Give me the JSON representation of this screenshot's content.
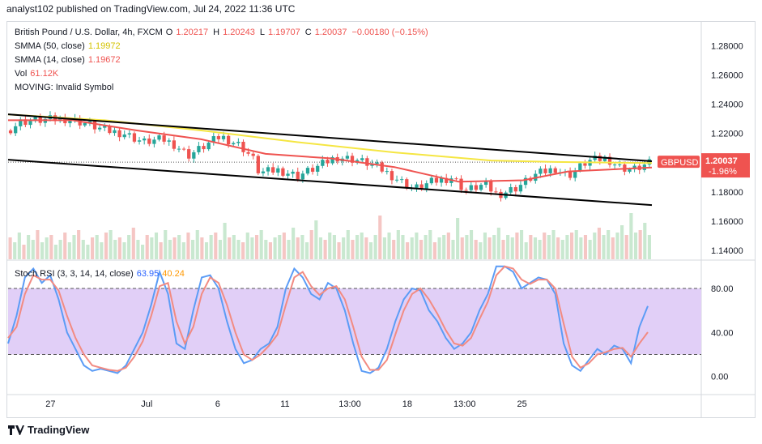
{
  "header": {
    "published": "analyst102 published on TradingView.com, Jul 24, 2022 11:36 UTC"
  },
  "legend": {
    "symbol": "British Pound / U.S. Dollar, 4h, FXCM",
    "o_label": "O",
    "o": "1.20217",
    "h_label": "H",
    "h": "1.20243",
    "l_label": "L",
    "l": "1.19707",
    "c_label": "C",
    "c": "1.20037",
    "change": "−0.00180 (−0.15%)",
    "smma50_label": "SMMA (50, close)",
    "smma50": "1.19972",
    "smma14_label": "SMMA (14, close)",
    "smma14": "1.19672",
    "vol_label": "Vol",
    "vol": "61.12K",
    "moving": "MOVING: Invalid Symbol",
    "stoch_label": "Stoch RSI (3, 3, 14, 14, close)",
    "stoch_k": "63.95",
    "stoch_d": "40.24"
  },
  "price_badge": {
    "symbol": "GBPUSD",
    "price": "1.20037",
    "pct": "-1.96%"
  },
  "footer": {
    "brand": "TradingView"
  },
  "colors": {
    "bull": "#26a69a",
    "bear": "#ef5350",
    "smma50": "#f5e642",
    "smma14": "#ef5350",
    "stoch_k": "#5b9cf6",
    "stoch_d": "#f28b82",
    "band": "#e1cff7",
    "badge": "#ef5350",
    "trendline": "#000000"
  },
  "chart_data": [
    {
      "type": "candlestick",
      "title": "British Pound / U.S. Dollar, 4h, FXCM",
      "y_ticks": [
        "1.28000",
        "1.26000",
        "1.24000",
        "1.22000",
        "1.20000",
        "1.18000",
        "1.16000",
        "1.14000"
      ],
      "ylim": [
        1.134,
        1.289
      ],
      "x_ticks": [
        "27",
        "Jul",
        "6",
        "11",
        "13:00",
        "18",
        "13:00",
        "25"
      ],
      "x_tick_positions": [
        0.085,
        0.278,
        0.42,
        0.555,
        0.685,
        0.8,
        0.915,
        1.03
      ],
      "close_path": [
        [
          0.0,
          1.222
        ],
        [
          0.02,
          1.228
        ],
        [
          0.05,
          1.229
        ],
        [
          0.09,
          1.23
        ],
        [
          0.12,
          1.227
        ],
        [
          0.15,
          1.222
        ],
        [
          0.18,
          1.22
        ],
        [
          0.21,
          1.214
        ],
        [
          0.24,
          1.216
        ],
        [
          0.26,
          1.212
        ],
        [
          0.28,
          1.205
        ],
        [
          0.3,
          1.21
        ],
        [
          0.33,
          1.218
        ],
        [
          0.36,
          1.212
        ],
        [
          0.38,
          1.203
        ],
        [
          0.39,
          1.193
        ],
        [
          0.42,
          1.195
        ],
        [
          0.45,
          1.191
        ],
        [
          0.48,
          1.197
        ],
        [
          0.51,
          1.204
        ],
        [
          0.54,
          1.202
        ],
        [
          0.57,
          1.198
        ],
        [
          0.6,
          1.19
        ],
        [
          0.63,
          1.182
        ],
        [
          0.66,
          1.187
        ],
        [
          0.69,
          1.19
        ],
        [
          0.71,
          1.181
        ],
        [
          0.74,
          1.185
        ],
        [
          0.76,
          1.178
        ],
        [
          0.79,
          1.183
        ],
        [
          0.82,
          1.192
        ],
        [
          0.85,
          1.196
        ],
        [
          0.87,
          1.191
        ],
        [
          0.9,
          1.201
        ],
        [
          0.93,
          1.203
        ],
        [
          0.95,
          1.197
        ],
        [
          0.97,
          1.195
        ],
        [
          1.0,
          1.2
        ]
      ],
      "smma50_path": [
        [
          0.0,
          1.233
        ],
        [
          0.15,
          1.229
        ],
        [
          0.3,
          1.222
        ],
        [
          0.45,
          1.214
        ],
        [
          0.6,
          1.207
        ],
        [
          0.75,
          1.2015
        ],
        [
          0.85,
          1.2005
        ],
        [
          1.0,
          1.19972
        ]
      ],
      "smma14_path": [
        [
          0.0,
          1.229
        ],
        [
          0.1,
          1.229
        ],
        [
          0.2,
          1.222
        ],
        [
          0.3,
          1.216
        ],
        [
          0.4,
          1.206
        ],
        [
          0.5,
          1.203
        ],
        [
          0.6,
          1.197
        ],
        [
          0.7,
          1.187
        ],
        [
          0.8,
          1.188
        ],
        [
          0.87,
          1.194
        ],
        [
          1.0,
          1.19672
        ]
      ],
      "trendlines": [
        {
          "points": [
            [
              0.0,
              1.233
            ],
            [
              1.0,
              1.201
            ]
          ]
        },
        {
          "points": [
            [
              0.0,
              1.202
            ],
            [
              1.0,
              1.171
            ]
          ]
        }
      ],
      "volume": [
        0.45,
        0.35,
        0.55,
        0.3,
        0.5,
        0.4,
        0.6,
        0.35,
        0.45,
        0.5,
        0.3,
        0.4,
        0.55,
        0.35,
        0.5,
        0.6,
        0.4,
        0.3,
        0.45,
        0.5,
        0.35,
        0.55,
        0.6,
        0.4,
        0.45,
        0.35,
        0.5,
        0.65,
        0.4,
        0.3,
        0.5,
        0.45,
        0.55,
        0.35,
        0.6,
        0.4,
        0.45,
        0.5,
        0.35,
        0.55,
        0.4,
        0.6,
        0.45,
        0.35,
        0.5,
        0.55,
        0.4,
        0.75,
        0.45,
        0.5,
        0.4,
        0.35,
        0.55,
        0.45,
        0.5,
        0.6,
        0.4,
        0.35,
        0.45,
        0.5,
        0.55,
        0.4,
        0.65,
        0.45,
        0.5,
        0.35,
        0.6,
        0.8,
        0.45,
        0.4,
        0.55,
        0.5,
        0.35,
        0.45,
        0.6,
        0.4,
        0.5,
        0.55,
        0.45,
        0.35,
        0.5,
        0.9,
        0.45,
        0.55,
        0.4,
        0.6,
        0.5,
        0.35,
        0.45,
        0.55,
        0.4,
        0.5,
        0.6,
        0.35,
        0.45,
        0.5,
        0.55,
        0.4,
        0.85,
        0.45,
        0.5,
        0.6,
        0.4,
        0.35,
        0.55,
        0.45,
        0.5,
        0.65,
        0.4,
        0.5,
        0.45,
        0.55,
        0.6,
        0.35,
        0.5,
        0.45,
        0.4,
        0.55,
        0.5,
        0.6,
        0.45,
        0.4,
        0.5,
        0.55,
        0.6,
        0.45,
        0.5,
        0.4,
        0.55,
        0.65,
        0.5,
        0.6,
        0.45,
        0.55,
        0.7,
        0.5,
        0.95,
        0.55,
        0.6,
        0.75,
        0.5
      ]
    },
    {
      "type": "line",
      "title": "Stoch RSI (3, 3, 14, 14, close)",
      "y_ticks": [
        "80.00",
        "40.00",
        "0.00"
      ],
      "ylim": [
        -15,
        105
      ],
      "band": [
        20,
        80
      ],
      "series": [
        {
          "name": "%K",
          "values": [
            30,
            55,
            90,
            98,
            85,
            92,
            70,
            40,
            25,
            10,
            5,
            7,
            5,
            3,
            10,
            25,
            40,
            65,
            95,
            75,
            30,
            25,
            60,
            90,
            92,
            80,
            50,
            25,
            12,
            15,
            25,
            30,
            45,
            80,
            98,
            90,
            75,
            70,
            85,
            80,
            60,
            30,
            5,
            3,
            8,
            25,
            50,
            70,
            80,
            78,
            60,
            50,
            35,
            25,
            30,
            40,
            60,
            75,
            100,
            100,
            95,
            80,
            85,
            90,
            88,
            75,
            30,
            10,
            5,
            15,
            25,
            20,
            28,
            25,
            12,
            45,
            64
          ]
        },
        {
          "name": "%D",
          "values": [
            35,
            45,
            75,
            92,
            88,
            88,
            78,
            55,
            35,
            20,
            10,
            8,
            6,
            5,
            8,
            18,
            32,
            55,
            82,
            85,
            50,
            30,
            45,
            75,
            90,
            85,
            65,
            40,
            20,
            15,
            20,
            28,
            38,
            65,
            90,
            95,
            82,
            74,
            80,
            82,
            70,
            45,
            18,
            6,
            6,
            15,
            38,
            60,
            75,
            80,
            70,
            57,
            42,
            30,
            28,
            35,
            52,
            68,
            92,
            100,
            98,
            88,
            84,
            88,
            88,
            80,
            48,
            18,
            8,
            12,
            20,
            22,
            25,
            26,
            18,
            30,
            40.24
          ]
        }
      ]
    }
  ]
}
